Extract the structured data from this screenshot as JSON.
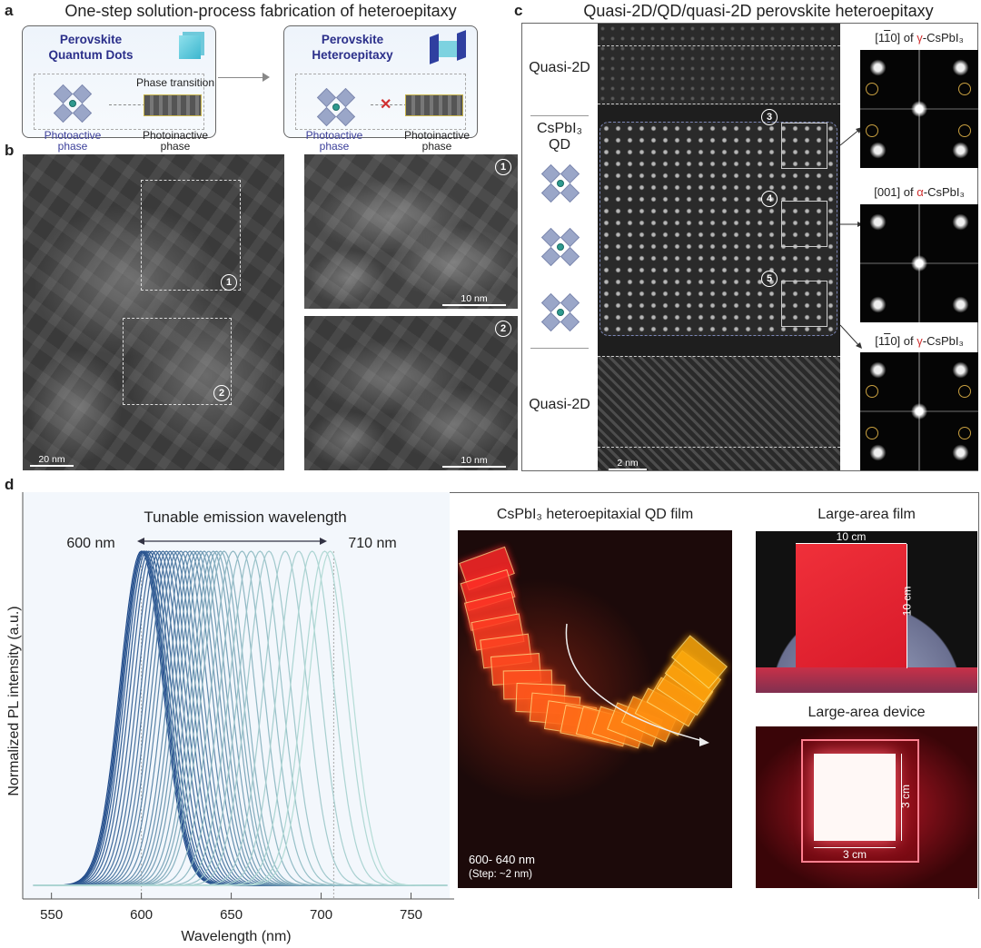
{
  "panel_a": {
    "label": "a",
    "title": "One-step solution-process fabrication of heteroepitaxy",
    "left_box": {
      "heading": [
        "Perovskite",
        "Quantum Dots"
      ],
      "arrow_label": "Phase transition",
      "left_phase": [
        "Photoactive",
        "phase"
      ],
      "right_phase": [
        "Photoinactive",
        "phase"
      ]
    },
    "right_box": {
      "heading": [
        "Perovskite",
        "Heteroepitaxy"
      ],
      "left_phase": [
        "Photoactive",
        "phase"
      ],
      "right_phase": [
        "Photoinactive",
        "phase"
      ],
      "blocked_icon": "red-x-icon"
    }
  },
  "panel_b": {
    "label": "b",
    "main_scale": "20 nm",
    "regions": [
      "1",
      "2"
    ],
    "zoom_scales": [
      "10 nm",
      "10 nm"
    ]
  },
  "panel_c": {
    "label": "c",
    "title": "Quasi-2D/QD/quasi-2D perovskite heteroepitaxy",
    "layers": {
      "top": "Quasi-2D",
      "middle": "CsPbI₃",
      "middle2": "QD",
      "bottom": "Quasi-2D"
    },
    "scale": "2 nm",
    "regions": [
      "3",
      "4",
      "5"
    ],
    "fft": [
      {
        "pre": "[1",
        "bar": "1",
        "post": "0] of ",
        "greek": "γ",
        "phase": "-CsPbI₃"
      },
      {
        "pre": "[001] of ",
        "bar": "",
        "post": "",
        "greek": "α",
        "phase": "-CsPbI₃"
      },
      {
        "pre": "[1",
        "bar": "1",
        "post": "0] of ",
        "greek": "γ",
        "phase": "-CsPbI₃"
      }
    ],
    "accent_color": "#d03030"
  },
  "panel_d": {
    "label": "d",
    "film_title": "CsPbI₃ heteroepitaxial QD film",
    "film_range": "600- 640 nm",
    "film_step": "(Step: ~2 nm)",
    "large_film_title": "Large-area film",
    "large_film_w": "10 cm",
    "large_film_h": "10 cm",
    "device_title": "Large-area device",
    "device_w": "3 cm",
    "device_h": "3 cm"
  },
  "chart_data": {
    "type": "line",
    "title": "Tunable emission wavelength",
    "annotation_left": "600 nm",
    "annotation_right": "710 nm",
    "xlabel": "Wavelength (nm)",
    "ylabel": "Normalized PL intensity (a.u.)",
    "xlim": [
      534,
      774
    ],
    "ylim": [
      0,
      1.1
    ],
    "xticks": [
      550,
      600,
      650,
      700,
      750
    ],
    "yticks": [],
    "grid": false,
    "reference_lines_x": [
      600,
      707
    ],
    "peak_wavelengths": [
      600,
      600.7,
      601.3,
      602,
      603,
      604.4,
      606,
      608,
      610,
      612,
      614,
      616,
      618,
      620,
      622,
      624.5,
      627,
      629,
      631,
      633,
      635,
      637.5,
      640,
      641.8,
      644,
      646,
      651,
      656,
      661,
      666,
      671,
      680,
      687.5,
      695,
      702,
      705
    ],
    "fwhm_nm": 28,
    "color_start": "#1f4a8a",
    "color_end": "#b4dcd6"
  }
}
